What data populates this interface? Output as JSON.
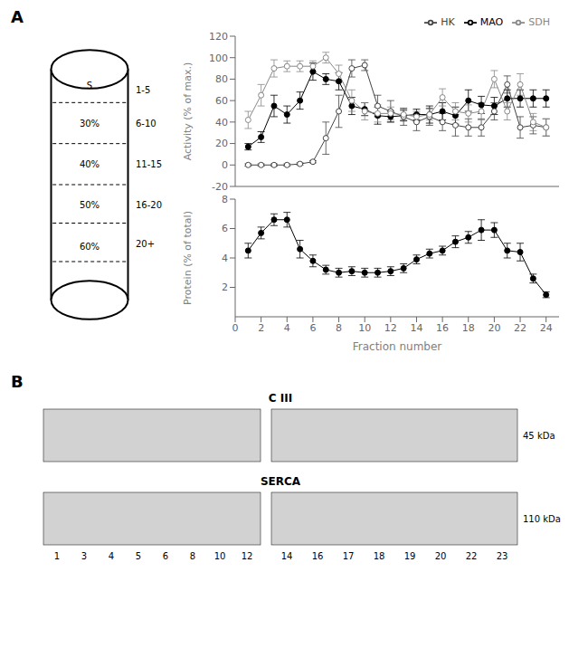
{
  "chart_data": [
    {
      "type": "diagram",
      "annotations": [
        "A",
        "S",
        "30%",
        "40%",
        "50%",
        "60%",
        "1-5",
        "6-10",
        "11-15",
        "16-20",
        "20+"
      ]
    },
    {
      "type": "line",
      "ylabel": "Activity (% of max.)",
      "x": [
        1,
        2,
        3,
        4,
        5,
        6,
        7,
        8,
        9,
        10,
        11,
        12,
        13,
        14,
        15,
        16,
        17,
        18,
        19,
        20,
        21,
        22,
        23,
        24
      ],
      "series": [
        {
          "name": "MAO",
          "color": "#000000",
          "marker": "circle",
          "line_style": "solid",
          "values": [
            17,
            26,
            55,
            47,
            60,
            87,
            80,
            78,
            55,
            52,
            46,
            45,
            46,
            47,
            47,
            50,
            46,
            60,
            56,
            55,
            62,
            62,
            62,
            62
          ],
          "errors": [
            3,
            5,
            10,
            8,
            8,
            8,
            5,
            8,
            8,
            6,
            8,
            5,
            5,
            5,
            8,
            8,
            8,
            10,
            8,
            8,
            8,
            8,
            8,
            8
          ]
        },
        {
          "name": "HK",
          "color": "#444444",
          "marker": "open_circle",
          "line_style": "solid",
          "values": [
            0,
            0,
            0,
            0,
            1,
            3,
            25,
            50,
            90,
            93,
            55,
            50,
            45,
            40,
            45,
            40,
            37,
            35,
            35,
            50,
            75,
            35,
            37,
            35
          ],
          "errors": [
            1,
            1,
            1,
            1,
            1,
            1,
            15,
            15,
            8,
            5,
            10,
            10,
            8,
            8,
            8,
            8,
            10,
            8,
            8,
            8,
            8,
            10,
            8,
            8
          ]
        },
        {
          "name": "SDH",
          "color": "#888888",
          "marker": "open_circle",
          "line_style": "solid",
          "values": [
            42,
            65,
            90,
            92,
            92,
            92,
            100,
            85,
            60,
            50,
            48,
            48,
            47,
            45,
            47,
            63,
            50,
            48,
            50,
            80,
            50,
            75,
            40,
            35
          ],
          "errors": [
            8,
            10,
            8,
            5,
            5,
            5,
            5,
            8,
            10,
            8,
            8,
            6,
            5,
            5,
            5,
            8,
            8,
            8,
            8,
            8,
            8,
            10,
            8,
            8
          ]
        }
      ],
      "xlim": [
        0,
        25
      ],
      "ylim": [
        -20,
        120
      ],
      "yticks": [
        -20,
        0,
        20,
        40,
        60,
        80,
        100,
        120
      ],
      "tick_labels": "y",
      "legend": "upper right",
      "grid": false
    },
    {
      "type": "line",
      "xlabel": "Fraction number",
      "ylabel": "Protein (% of total)",
      "x": [
        1,
        2,
        3,
        4,
        5,
        6,
        7,
        8,
        9,
        10,
        11,
        12,
        13,
        14,
        15,
        16,
        17,
        18,
        19,
        20,
        21,
        22,
        23,
        24
      ],
      "values": [
        4.5,
        5.7,
        6.6,
        6.6,
        4.6,
        3.8,
        3.2,
        3.0,
        3.1,
        3.0,
        3.0,
        3.1,
        3.3,
        3.9,
        4.3,
        4.5,
        5.1,
        5.4,
        5.9,
        5.9,
        4.5,
        4.4,
        2.6,
        1.5
      ],
      "errors": [
        0.5,
        0.4,
        0.4,
        0.5,
        0.6,
        0.4,
        0.3,
        0.3,
        0.3,
        0.3,
        0.3,
        0.3,
        0.3,
        0.3,
        0.3,
        0.3,
        0.4,
        0.4,
        0.7,
        0.5,
        0.5,
        0.6,
        0.3,
        0.2
      ],
      "color": "#000000",
      "marker": "circle",
      "line_style": "solid",
      "xlim": [
        0,
        25
      ],
      "xticks": [
        0,
        2,
        4,
        6,
        8,
        10,
        12,
        14,
        16,
        18,
        20,
        22,
        24
      ],
      "ylim": [
        0,
        8
      ],
      "yticks": [
        2,
        4,
        6,
        8
      ],
      "grid": false
    },
    {
      "type": "blot",
      "annotations": [
        "B",
        "C III",
        "45 kDa",
        "SERCA",
        "110 kDa"
      ],
      "categories": [
        "1",
        "3",
        "4",
        "5",
        "6",
        "8",
        "10",
        "12",
        "14",
        "16",
        "17",
        "18",
        "19",
        "20",
        "22",
        "23"
      ]
    }
  ]
}
